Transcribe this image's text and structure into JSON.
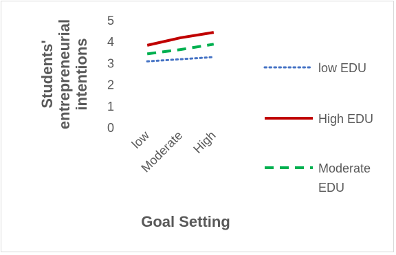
{
  "chart_data": {
    "type": "line",
    "categories": [
      "low",
      "Moderate",
      "High"
    ],
    "series": [
      {
        "name": "low EDU",
        "values": [
          3.1,
          3.2,
          3.3
        ],
        "color": "#4472c4",
        "dash": "dotted"
      },
      {
        "name": "High EDU",
        "values": [
          3.85,
          4.2,
          4.45
        ],
        "color": "#c00000",
        "dash": "solid"
      },
      {
        "name": "Moderate EDU",
        "values": [
          3.45,
          3.65,
          3.9
        ],
        "color": "#00b050",
        "dash": "dashed"
      }
    ],
    "title": "",
    "xlabel": "Goal Setting",
    "ylabel": "Students' entrepreneurial intentions",
    "ylabel_lines": [
      "Students'",
      "entrepreneurial",
      "intentions"
    ],
    "ylim": [
      0,
      5
    ],
    "yticks": [
      0,
      1,
      2,
      3,
      4,
      5
    ],
    "grid": false,
    "legend_position": "right",
    "legend_lines": [
      [
        "low EDU"
      ],
      [
        "High EDU"
      ],
      [
        "Moderate",
        "EDU"
      ]
    ]
  }
}
